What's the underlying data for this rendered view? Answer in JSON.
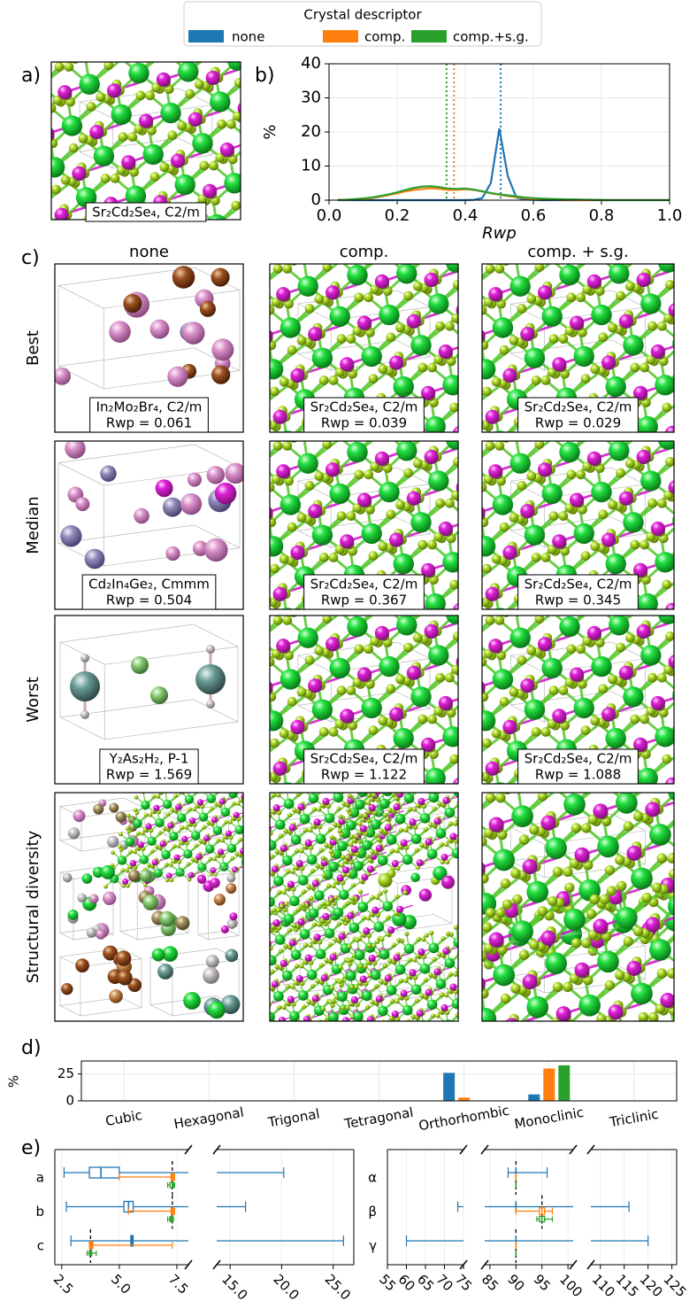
{
  "legend": {
    "title": "Crystal descriptor",
    "entries": [
      {
        "name": "none",
        "color": "#1f77b4"
      },
      {
        "name": "comp.",
        "color": "#ff7f0e"
      },
      {
        "name": "comp.+s.g.",
        "color": "#2ca02c"
      }
    ]
  },
  "panel_labels": [
    "a)",
    "b)",
    "c)",
    "d)",
    "e)"
  ],
  "panel_a": {
    "caption": "Sr₂Cd₂Se₄, C2/m"
  },
  "panel_c": {
    "columns": [
      "none",
      "comp.",
      "comp. + s.g."
    ],
    "rows": [
      "Best",
      "Median",
      "Worst",
      "Structural diversity"
    ],
    "captions": [
      [
        [
          "In₂Mo₂Br₄, C2/m",
          "Rwp = 0.061"
        ],
        [
          "Sr₂Cd₂Se₄, C2/m",
          "Rwp = 0.039"
        ],
        [
          "Sr₂Cd₂Se₄, C2/m",
          "Rwp = 0.029"
        ]
      ],
      [
        [
          "Cd₂In₄Ge₂, Cmmm",
          "Rwp = 0.504"
        ],
        [
          "Sr₂Cd₂Se₄, C2/m",
          "Rwp = 0.367"
        ],
        [
          "Sr₂Cd₂Se₄, C2/m",
          "Rwp = 0.345"
        ]
      ],
      [
        [
          "Y₂As₂H₂, P-1",
          "Rwp = 1.569"
        ],
        [
          "Sr₂Cd₂Se₄, C2/m",
          "Rwp = 1.122"
        ],
        [
          "Sr₂Cd₂Se₄, C2/m",
          "Rwp = 1.088"
        ]
      ]
    ]
  },
  "chart_data": [
    {
      "type": "kde",
      "x_label": "Rwp",
      "y_label": "%",
      "xlim": [
        0,
        1
      ],
      "ylim": [
        0,
        40
      ],
      "xticks": [
        {
          "value": 0,
          "label": "0.0"
        },
        {
          "value": 0.2,
          "label": "0.2"
        },
        {
          "value": 0.4,
          "label": "0.4"
        },
        {
          "value": 0.6,
          "label": "0.6"
        },
        {
          "value": 0.8,
          "label": "0.8"
        },
        {
          "value": 1,
          "label": "1.0"
        }
      ],
      "yticks": [
        0,
        10,
        20,
        30,
        40
      ],
      "grid": true,
      "x": [
        0,
        0.025,
        0.05,
        0.075,
        0.1,
        0.125,
        0.15,
        0.175,
        0.2,
        0.225,
        0.25,
        0.275,
        0.3,
        0.325,
        0.35,
        0.375,
        0.4,
        0.425,
        0.45,
        0.475,
        0.5,
        0.525,
        0.55,
        0.575,
        0.6,
        0.625,
        0.65,
        0.675,
        0.7,
        0.725,
        0.75,
        0.775,
        0.8,
        0.825,
        0.85,
        0.875,
        0.9,
        0.925,
        0.95,
        0.975,
        1
      ],
      "series": [
        {
          "color": "#1f77b4",
          "median": 0.504,
          "values": [
            null,
            0,
            0,
            0,
            0,
            0,
            0,
            0,
            0,
            0,
            0,
            0,
            0,
            0,
            0,
            0,
            0,
            0.1,
            0.6,
            5,
            21,
            7,
            0.8,
            0.2,
            0.1,
            0,
            0,
            0,
            0,
            0,
            0,
            0,
            0,
            0,
            0,
            0,
            0,
            0,
            0,
            0,
            0
          ]
        },
        {
          "color": "#ff7f0e",
          "median": 0.367,
          "values": [
            null,
            0.05,
            0.1,
            0.2,
            0.4,
            0.6,
            1,
            1.5,
            2,
            2.6,
            3,
            3.3,
            3.5,
            3.3,
            3,
            3,
            3.2,
            3,
            2.6,
            2,
            1.6,
            1.2,
            0.9,
            0.6,
            0.4,
            0.25,
            0.15,
            0.1,
            0.05,
            0.02,
            0.02,
            0.02,
            0.02,
            0.02,
            0.02,
            0.02,
            0.02,
            0.02,
            0.02,
            0.02,
            0.02
          ]
        },
        {
          "color": "#2ca02c",
          "median": 0.345,
          "values": [
            null,
            0.05,
            0.1,
            0.3,
            0.5,
            0.8,
            1.2,
            1.7,
            2.3,
            3,
            3.6,
            4,
            4.1,
            3.8,
            3.4,
            3.3,
            3.4,
            3.1,
            2.6,
            2.1,
            1.7,
            1.4,
            1.1,
            0.8,
            0.6,
            0.45,
            0.35,
            0.3,
            0.25,
            0.2,
            0.15,
            0.1,
            0.05,
            0.02,
            0.02,
            0.02,
            0.02,
            0.02,
            0.02,
            0.02,
            0.02
          ]
        }
      ]
    },
    {
      "type": "bar",
      "y_label": "%",
      "categories": [
        "Cubic",
        "Hexagonal",
        "Trigonal",
        "Tetragonal",
        "Orthorhombic",
        "Monoclinic",
        "Triclinic"
      ],
      "ylim": [
        0,
        37
      ],
      "yticks": [
        0,
        25
      ],
      "grid": true,
      "series": [
        {
          "color": "#1f77b4",
          "values": [
            0,
            0,
            0,
            0,
            26,
            6,
            0
          ]
        },
        {
          "color": "#ff7f0e",
          "values": [
            0,
            0,
            0,
            0,
            3,
            30,
            0
          ]
        },
        {
          "color": "#2ca02c",
          "values": [
            0,
            0,
            0,
            0,
            0,
            33,
            0
          ]
        }
      ]
    },
    {
      "type": "box",
      "categories": [
        "a",
        "b",
        "c"
      ],
      "grid": true,
      "segments": [
        [
          2.2,
          8.0
        ],
        [
          13.7,
          27.0
        ]
      ],
      "xticks": [
        2.5,
        {
          "value": 5,
          "label": "5.0"
        },
        7.5,
        {
          "value": 15,
          "label": "15.0"
        },
        {
          "value": 20,
          "label": "20.0"
        },
        {
          "value": 25,
          "label": "25.0"
        }
      ],
      "reference": [
        7.3,
        7.3,
        3.75
      ],
      "series": [
        {
          "color": "#1f77b4",
          "values": [
            [
              2.6,
              3.7,
              4.2,
              5.0,
              20.2
            ],
            [
              2.7,
              5.2,
              5.4,
              5.6,
              16.5
            ],
            [
              2.9,
              5.5,
              5.55,
              5.6,
              26.0
            ]
          ]
        },
        {
          "color": "#ff7f0e",
          "values": [
            [
              5.0,
              7.25,
              7.3,
              7.35,
              7.4
            ],
            [
              5.4,
              7.25,
              7.3,
              7.35,
              7.4
            ],
            [
              3.7,
              3.75,
              3.8,
              3.85,
              7.3
            ]
          ]
        },
        {
          "color": "#2ca02c",
          "values": [
            [
              7.1,
              7.2,
              7.3,
              7.35,
              7.4
            ],
            [
              7.1,
              7.2,
              7.25,
              7.3,
              7.35
            ],
            [
              3.6,
              3.7,
              3.75,
              3.8,
              4.0
            ]
          ]
        }
      ]
    },
    {
      "type": "box",
      "categories": [
        "α",
        "β",
        "γ"
      ],
      "grid": true,
      "segments": [
        [
          55,
          75
        ],
        [
          84,
          101
        ],
        [
          108,
          126
        ]
      ],
      "xticks": [
        55,
        60,
        65,
        70,
        75,
        85,
        90,
        95,
        100,
        110,
        115,
        120,
        125
      ],
      "reference": [
        90,
        95,
        90
      ],
      "series": [
        {
          "color": "#1f77b4",
          "values": [
            [
              88.5,
              90,
              90,
              90,
              96
            ],
            [
              73.5,
              90,
              90,
              90,
              116
            ],
            [
              60,
              90,
              90,
              90,
              120
            ]
          ]
        },
        {
          "color": "#ff7f0e",
          "values": [
            [
              90,
              90,
              90,
              90,
              90
            ],
            [
              90,
              94.5,
              95,
              95.5,
              97
            ],
            [
              90,
              90,
              90,
              90,
              90
            ]
          ]
        },
        {
          "color": "#2ca02c",
          "values": [
            [
              90,
              90,
              90,
              90,
              90
            ],
            [
              94,
              94.5,
              95,
              95.5,
              97
            ],
            [
              90,
              90,
              90,
              90,
              90
            ]
          ]
        }
      ]
    }
  ]
}
